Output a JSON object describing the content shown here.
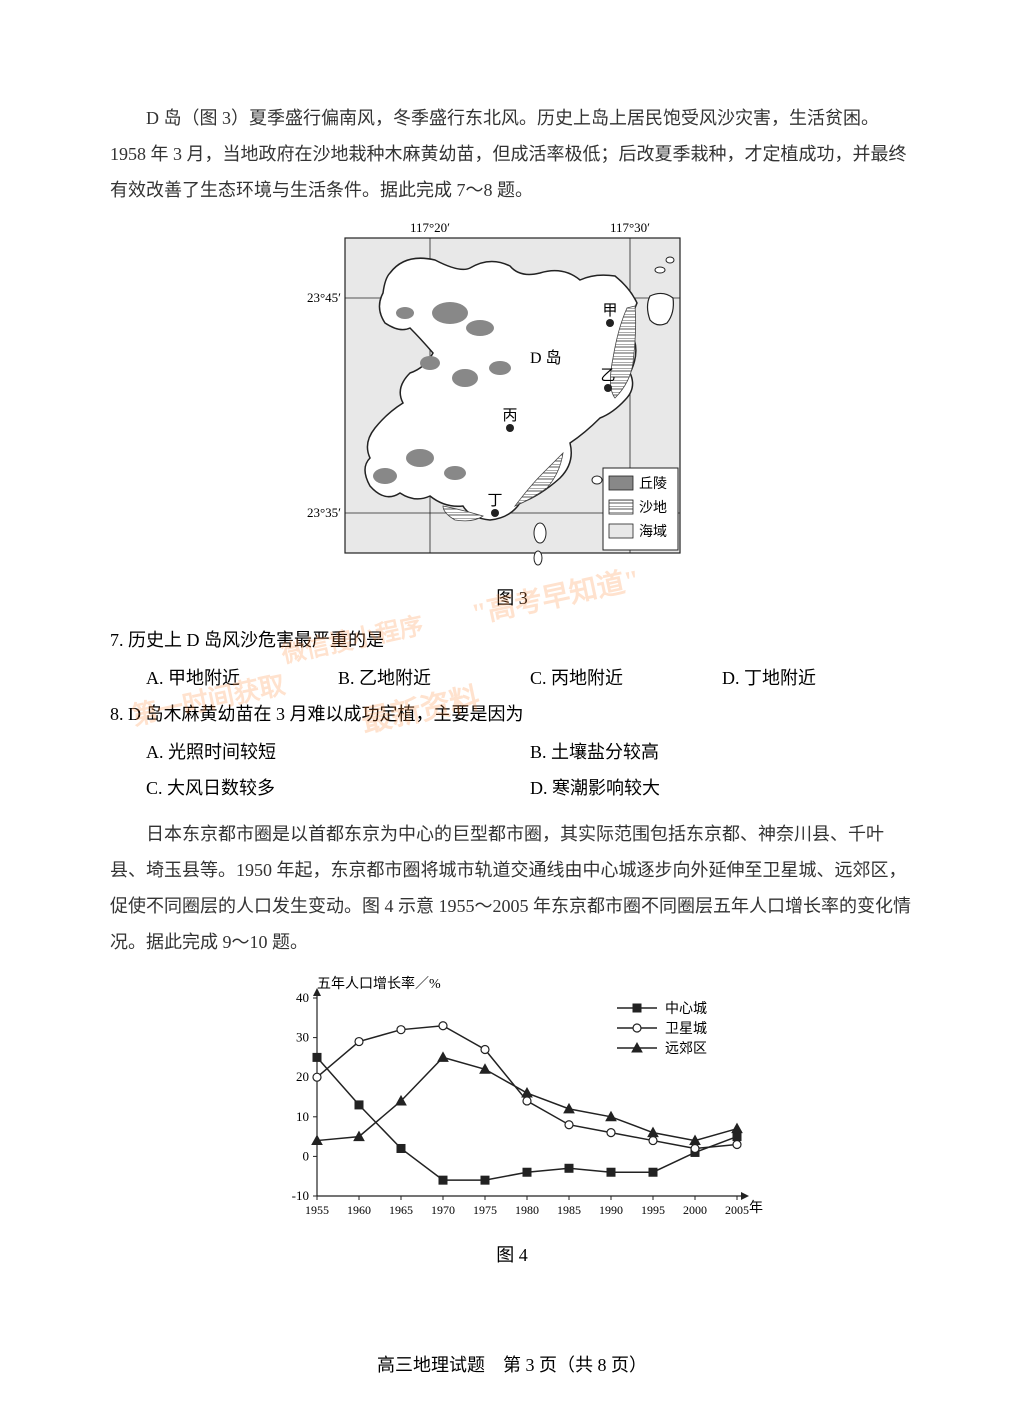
{
  "passage1": {
    "text": "D 岛（图 3）夏季盛行偏南风，冬季盛行东北风。历史上岛上居民饱受风沙灾害，生活贫困。1958 年 3 月，当地政府在沙地栽种木麻黄幼苗，但成活率极低；后改夏季栽种，才定植成功，并最终有效改善了生态环境与生活条件。据此完成 7～8 题。"
  },
  "figure3": {
    "caption": "图 3",
    "lon_labels": [
      "117°20′",
      "117°30′"
    ],
    "lat_labels": [
      "23°45′",
      "23°35′"
    ],
    "island_label": "D  岛",
    "points": [
      {
        "id": "甲",
        "x": 295,
        "y": 105
      },
      {
        "id": "乙",
        "x": 293,
        "y": 170
      },
      {
        "id": "丙",
        "x": 195,
        "y": 210
      },
      {
        "id": "丁",
        "x": 180,
        "y": 295
      }
    ],
    "legend": [
      {
        "label": "丘陵",
        "fill": "#888888",
        "pattern": "solid"
      },
      {
        "label": "沙地",
        "fill": "hatch",
        "pattern": "hatch"
      },
      {
        "label": "海域",
        "fill": "#e8e8e8",
        "pattern": "solid"
      }
    ],
    "colors": {
      "sea": "#e8e8e8",
      "land": "#ffffff",
      "hill": "#888888",
      "border": "#222222"
    }
  },
  "q7": {
    "stem": "7. 历史上 D 岛风沙危害最严重的是",
    "opts": [
      "A. 甲地附近",
      "B. 乙地附近",
      "C. 丙地附近",
      "D. 丁地附近"
    ]
  },
  "q8": {
    "stem": "8. D 岛木麻黄幼苗在 3 月难以成功定植，主要是因为",
    "opts": [
      "A. 光照时间较短",
      "B. 土壤盐分较高",
      "C. 大风日数较多",
      "D. 寒潮影响较大"
    ]
  },
  "passage2": {
    "text": "日本东京都市圈是以首都东京为中心的巨型都市圈，其实际范围包括东京都、神奈川县、千叶县、埼玉县等。1950 年起，东京都市圈将城市轨道交通线由中心城逐步向外延伸至卫星城、远郊区，促使不同圈层的人口发生变动。图 4 示意 1955～2005 年东京都市圈不同圈层五年人口增长率的变化情况。据此完成 9～10 题。"
  },
  "figure4": {
    "caption": "图 4",
    "ylabel": "五年人口增长率／%",
    "xlabel": "年",
    "ylim": [
      -10,
      40
    ],
    "yticks": [
      -10,
      0,
      10,
      20,
      30,
      40
    ],
    "xlim": [
      1955,
      2005
    ],
    "xticks": [
      1955,
      1960,
      1965,
      1970,
      1975,
      1980,
      1985,
      1990,
      1995,
      2000,
      2005
    ],
    "series": [
      {
        "name": "中心城",
        "marker": "square",
        "data": [
          25,
          13,
          2,
          -6,
          -6,
          -4,
          -3,
          -4,
          -4,
          1,
          5
        ]
      },
      {
        "name": "卫星城",
        "marker": "circle",
        "data": [
          20,
          29,
          32,
          33,
          27,
          14,
          8,
          6,
          4,
          2,
          3
        ]
      },
      {
        "name": "远郊区",
        "marker": "triangle",
        "data": [
          4,
          5,
          14,
          25,
          22,
          16,
          12,
          10,
          6,
          4,
          7
        ]
      }
    ],
    "colors": {
      "axis": "#222222",
      "line": "#222222",
      "marker_fill": "#222222",
      "marker_open": "#ffffff"
    }
  },
  "footer": "高三地理试题　第 3 页（共 8 页）",
  "watermarks": {
    "wm1": "\"高考早知道\"",
    "wm2": "微信搜小程序",
    "wm3": "第一时间获取",
    "wm4": "最新资料"
  }
}
